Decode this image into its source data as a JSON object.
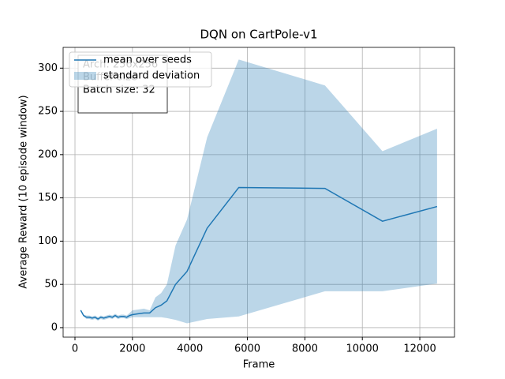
{
  "chart_data": {
    "type": "line",
    "title": "DQN on CartPole-v1",
    "x_label": "Frame",
    "y_label": "Average Reward (10 episode window)",
    "x": [
      200,
      300,
      400,
      500,
      600,
      700,
      800,
      900,
      1000,
      1100,
      1200,
      1300,
      1400,
      1500,
      1600,
      1700,
      1800,
      1900,
      2000,
      2200,
      2400,
      2600,
      2800,
      3000,
      3200,
      3500,
      3900,
      4600,
      5700,
      8700,
      10700,
      12600
    ],
    "series": [
      {
        "name": "mean over seeds",
        "color": "#1f77b4",
        "values": [
          20,
          14,
          12,
          12,
          11,
          12,
          10,
          12,
          11,
          12,
          13,
          12,
          14,
          12,
          13,
          13,
          12,
          14,
          15,
          16,
          17,
          17,
          23,
          26,
          31,
          50,
          65,
          115,
          162,
          161,
          123,
          140
        ]
      }
    ],
    "band": {
      "name": "standard deviation",
      "color": "#1f77b4",
      "opacity": 0.3,
      "upper": [
        21,
        15,
        14,
        14,
        13,
        14,
        12,
        14,
        13,
        14,
        15,
        14,
        16,
        14,
        15,
        15,
        14,
        17,
        20,
        21,
        22,
        20,
        35,
        40,
        50,
        95,
        125,
        220,
        310,
        280,
        204,
        230
      ],
      "lower": [
        19,
        13,
        10,
        10,
        9,
        10,
        8,
        10,
        9,
        10,
        11,
        10,
        12,
        10,
        11,
        11,
        10,
        11,
        12,
        12,
        12,
        12,
        12,
        12,
        11,
        9,
        5,
        10,
        13,
        42,
        42,
        51
      ]
    },
    "annotation": [
      "Arch: 256x256",
      "Buffer size",
      "Batch size: 32"
    ],
    "xlim": [
      -412,
      13207
    ],
    "ylim": [
      -11,
      324
    ],
    "xticks": [
      0,
      2000,
      4000,
      6000,
      8000,
      10000,
      12000
    ],
    "yticks": [
      0,
      50,
      100,
      150,
      200,
      250,
      300
    ],
    "grid": true,
    "legend": "upper left"
  }
}
